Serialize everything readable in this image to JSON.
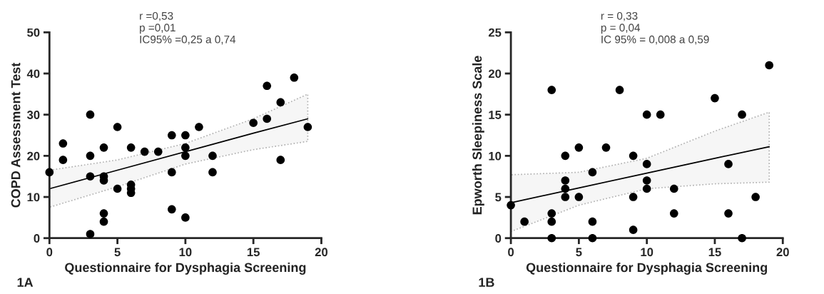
{
  "chart_data": [
    {
      "type": "scatter",
      "xlabel": "Questionnaire for Dysphagia Screening",
      "ylabel": "COPD Assessment Test",
      "xlim": [
        0,
        20
      ],
      "ylim": [
        0,
        50
      ],
      "xticks": [
        0,
        5,
        10,
        15,
        20
      ],
      "yticks": [
        0,
        10,
        20,
        30,
        40,
        50
      ],
      "grid": false,
      "legend": false,
      "marker": "circle",
      "annotations": [
        "r =0,53\np =0,01\nIC95% =0,25 a 0,74",
        "1A"
      ],
      "series": [
        {
          "color": "#000000",
          "x": [
            0,
            1,
            1,
            3,
            3,
            3,
            3,
            4,
            4,
            4,
            4,
            4,
            5,
            5,
            6,
            6,
            6,
            6,
            7,
            8,
            9,
            9,
            9,
            10,
            10,
            10,
            10,
            11,
            12,
            12,
            15,
            16,
            16,
            17,
            17,
            18,
            19
          ],
          "values": [
            16,
            23,
            19,
            30,
            20,
            15,
            1,
            22,
            15,
            14,
            6,
            4,
            27,
            12,
            22,
            13,
            12,
            11,
            21,
            21,
            25,
            16,
            7,
            25,
            22,
            20,
            5,
            27,
            20,
            16,
            28,
            37,
            29,
            33,
            19,
            39,
            27
          ]
        },
        {
          "type": "line",
          "color": "#000000",
          "marker": "none",
          "line_style": "solid",
          "x": [
            0,
            5,
            10,
            15,
            19
          ],
          "values": [
            12,
            16.5,
            21,
            25.5,
            29
          ],
          "lower": [
            7.5,
            12.5,
            18,
            21.5,
            23.5
          ],
          "upper": [
            16.5,
            19,
            23,
            29,
            35
          ]
        }
      ]
    },
    {
      "type": "scatter",
      "xlabel": "Questionnaire for Dysphagia Screening",
      "ylabel": "Epworth Sleepiness Scale",
      "xlim": [
        0,
        20
      ],
      "ylim": [
        0,
        25
      ],
      "xticks": [
        0,
        5,
        10,
        15,
        20
      ],
      "yticks": [
        0,
        5,
        10,
        15,
        20,
        25
      ],
      "grid": false,
      "legend": false,
      "marker": "circle",
      "annotations": [
        "r = 0,33\np = 0,04\nIC 95% = 0,008 a 0,59",
        "1B"
      ],
      "series": [
        {
          "color": "#000000",
          "x": [
            0,
            1,
            3,
            3,
            3,
            3,
            4,
            4,
            4,
            4,
            5,
            5,
            6,
            6,
            6,
            7,
            8,
            9,
            9,
            9,
            10,
            10,
            10,
            10,
            11,
            12,
            12,
            15,
            16,
            16,
            17,
            17,
            18,
            19
          ],
          "values": [
            4,
            2,
            18,
            3,
            2,
            0,
            10,
            7,
            6,
            5,
            11,
            5,
            8,
            2,
            0,
            11,
            18,
            10,
            5,
            1,
            15,
            9,
            7,
            6,
            15,
            6,
            3,
            17,
            9,
            3,
            15,
            0,
            5,
            21
          ]
        },
        {
          "type": "line",
          "color": "#000000",
          "marker": "none",
          "line_style": "solid",
          "x": [
            0,
            5,
            10,
            15,
            19
          ],
          "values": [
            4.3,
            6.1,
            7.9,
            9.7,
            11.1
          ],
          "lower": [
            0.8,
            4.0,
            6.0,
            6.6,
            6.8
          ],
          "upper": [
            7.7,
            8.0,
            9.7,
            13,
            15.3
          ]
        }
      ]
    }
  ]
}
